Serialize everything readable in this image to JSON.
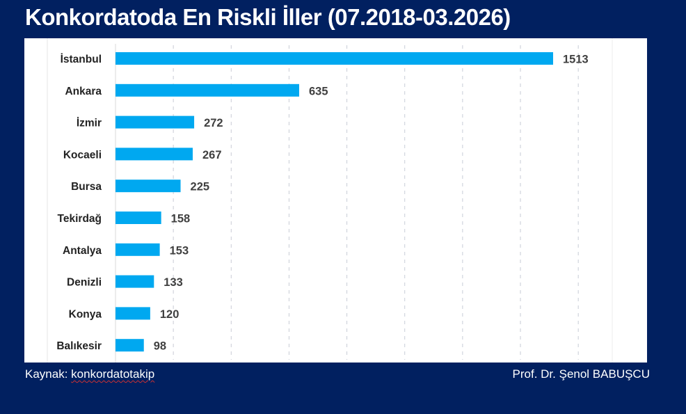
{
  "header": {
    "title": "Konkordatoda En Riskli İller (07.2018-03.2026)"
  },
  "footer": {
    "source_label": "Kaynak:",
    "source_value": "konkordatotakip",
    "author": "Prof. Dr. Şenol BABUŞCU"
  },
  "colors": {
    "background": "#012060",
    "bar": "#00A8F0",
    "panel": "#FFFFFF",
    "label": "#222222",
    "value": "#404040"
  },
  "chart_data": {
    "type": "bar",
    "orientation": "horizontal",
    "title": "Konkordatoda En Riskli İller (07.2018-03.2026)",
    "xlabel": "",
    "ylabel": "",
    "categories": [
      "İstanbul",
      "Ankara",
      "İzmir",
      "Kocaeli",
      "Bursa",
      "Tekirdağ",
      "Antalya",
      "Denizli",
      "Konya",
      "Balıkesir"
    ],
    "values": [
      1513,
      635,
      272,
      267,
      225,
      158,
      153,
      133,
      120,
      98
    ],
    "xlim": [
      0,
      1800
    ],
    "grid": true,
    "grid_step": 200,
    "data_labels": true,
    "legend": "none"
  }
}
